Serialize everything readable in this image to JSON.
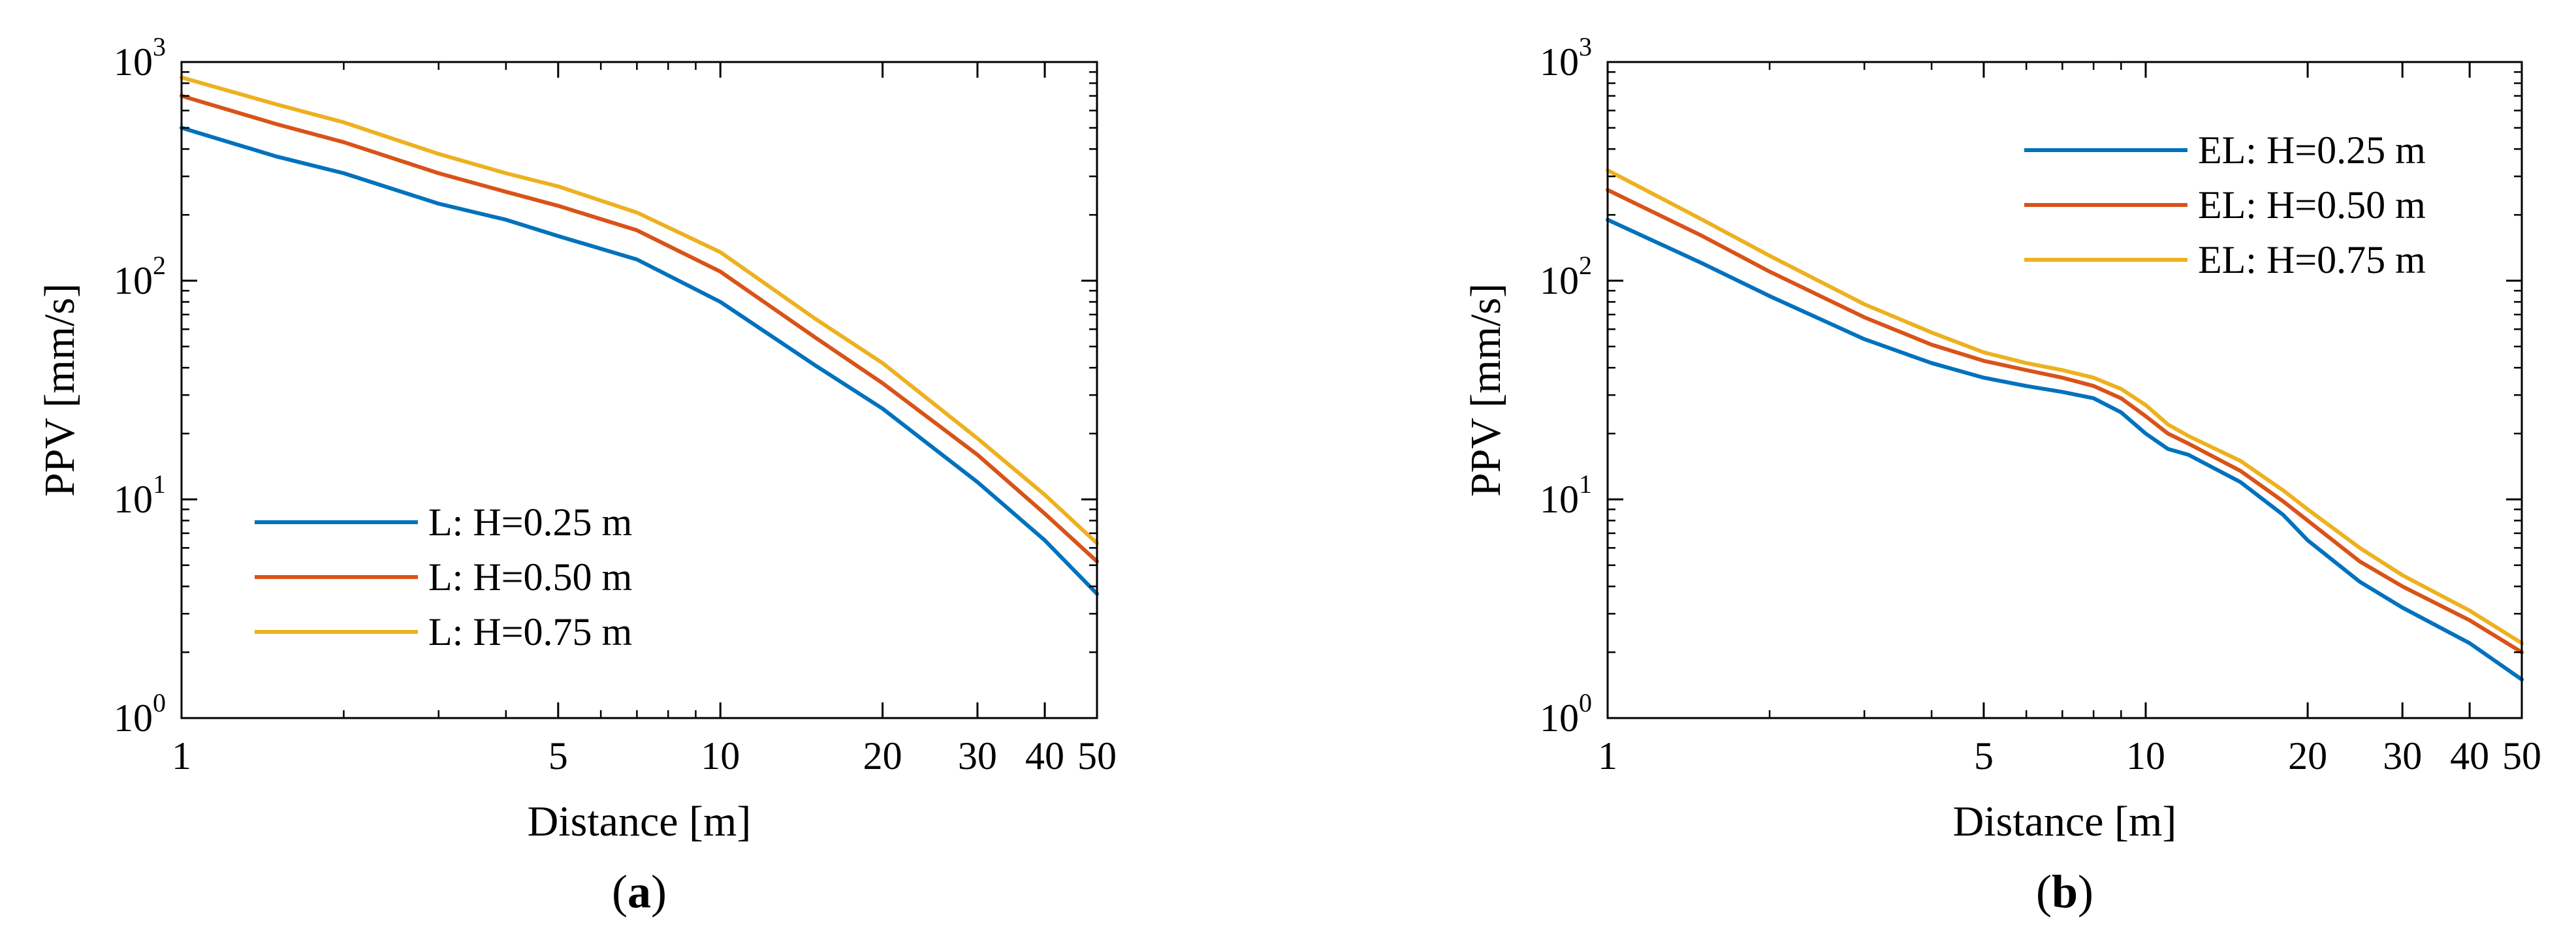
{
  "chart_data": [
    {
      "type": "line",
      "panel_label": "a",
      "xlabel": "Distance [m]",
      "ylabel": "PPV [mm/s]",
      "xscale": "log",
      "yscale": "log",
      "xlim": [
        1,
        50
      ],
      "ylim": [
        1,
        1000
      ],
      "x_ticks": [
        1,
        5,
        10,
        20,
        30,
        40,
        50
      ],
      "y_ticks": [
        {
          "value": 1,
          "base": "10",
          "exp": "0"
        },
        {
          "value": 10,
          "base": "10",
          "exp": "1"
        },
        {
          "value": 100,
          "base": "10",
          "exp": "2"
        },
        {
          "value": 1000,
          "base": "10",
          "exp": "3"
        }
      ],
      "grid": false,
      "legend_position": "bottom-left",
      "series": [
        {
          "name": "L: H=0.25 m",
          "color": "#0072BD",
          "x": [
            1,
            1.5,
            2,
            3,
            4,
            5,
            7,
            10,
            15,
            20,
            30,
            40,
            50
          ],
          "y": [
            500,
            370,
            310,
            225,
            190,
            160,
            125,
            80,
            41,
            26,
            12,
            6.5,
            3.7
          ]
        },
        {
          "name": "L: H=0.50 m",
          "color": "#D95319",
          "x": [
            1,
            1.5,
            2,
            3,
            4,
            5,
            7,
            10,
            15,
            20,
            30,
            40,
            50
          ],
          "y": [
            700,
            520,
            430,
            310,
            255,
            220,
            170,
            110,
            55,
            34,
            16,
            8.6,
            5.2
          ]
        },
        {
          "name": "L: H=0.75 m",
          "color": "#EDB120",
          "x": [
            1,
            1.5,
            2,
            3,
            4,
            5,
            7,
            10,
            15,
            20,
            30,
            40,
            50
          ],
          "y": [
            850,
            640,
            530,
            380,
            310,
            270,
            205,
            135,
            67,
            42,
            19,
            10.5,
            6.3
          ]
        }
      ]
    },
    {
      "type": "line",
      "panel_label": "b",
      "xlabel": "Distance [m]",
      "ylabel": "PPV [mm/s]",
      "xscale": "log",
      "yscale": "log",
      "xlim": [
        1,
        50
      ],
      "ylim": [
        1,
        1000
      ],
      "x_ticks": [
        1,
        5,
        10,
        20,
        30,
        40,
        50
      ],
      "y_ticks": [
        {
          "value": 1,
          "base": "10",
          "exp": "0"
        },
        {
          "value": 10,
          "base": "10",
          "exp": "1"
        },
        {
          "value": 100,
          "base": "10",
          "exp": "2"
        },
        {
          "value": 1000,
          "base": "10",
          "exp": "3"
        }
      ],
      "grid": false,
      "legend_position": "top-right",
      "series": [
        {
          "name": "EL: H=0.25 m",
          "color": "#0072BD",
          "x": [
            1,
            1.5,
            2,
            3,
            4,
            5,
            6,
            7,
            8,
            9,
            10,
            11,
            12,
            15,
            18,
            20,
            25,
            30,
            40,
            50
          ],
          "y": [
            190,
            120,
            85,
            54,
            42,
            36,
            33,
            31,
            29,
            25,
            20,
            17,
            16,
            12,
            8.5,
            6.5,
            4.2,
            3.2,
            2.2,
            1.5
          ]
        },
        {
          "name": "EL: H=0.50 m",
          "color": "#D95319",
          "x": [
            1,
            1.5,
            2,
            3,
            4,
            5,
            6,
            7,
            8,
            9,
            10,
            11,
            12,
            15,
            18,
            20,
            25,
            30,
            40,
            50
          ],
          "y": [
            260,
            160,
            110,
            68,
            51,
            43,
            39,
            36,
            33,
            29,
            24,
            20,
            18,
            13.5,
            9.8,
            8,
            5.2,
            4,
            2.8,
            2
          ]
        },
        {
          "name": "EL: H=0.75 m",
          "color": "#EDB120",
          "x": [
            1,
            1.5,
            2,
            3,
            4,
            5,
            6,
            7,
            8,
            9,
            10,
            11,
            12,
            15,
            18,
            20,
            25,
            30,
            40,
            50
          ],
          "y": [
            320,
            190,
            130,
            78,
            58,
            47,
            42,
            39,
            36,
            32,
            27,
            22,
            19.5,
            15,
            11,
            9,
            6,
            4.5,
            3.1,
            2.2
          ]
        }
      ]
    }
  ]
}
